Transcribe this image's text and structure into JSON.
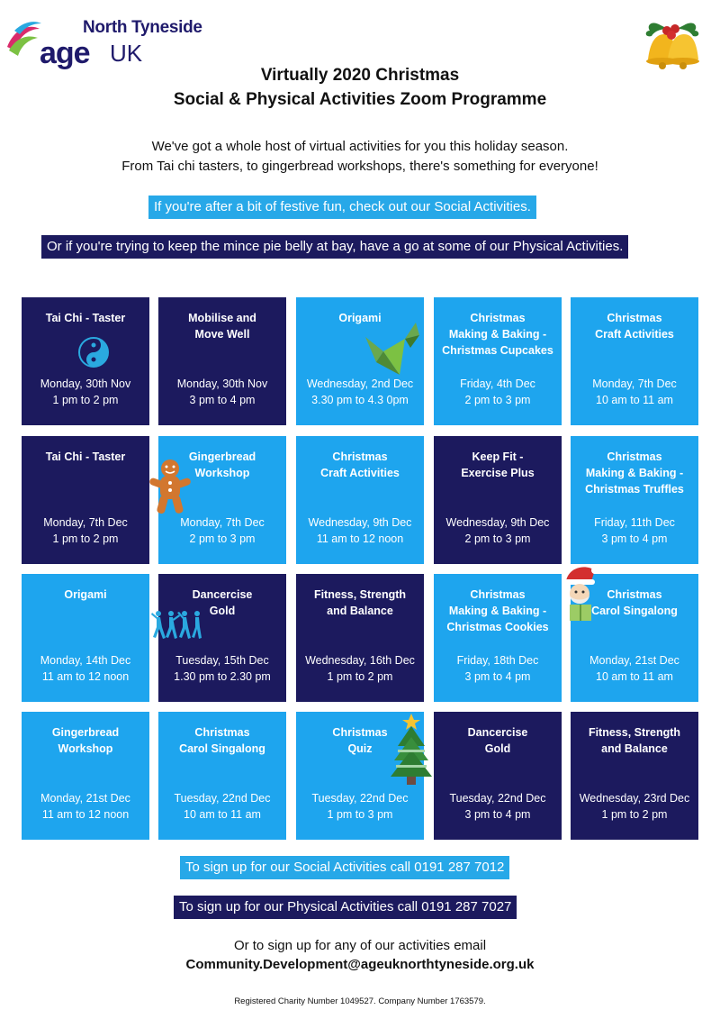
{
  "logo": {
    "line1": "North Tyneside",
    "age": "age",
    "uk": "UK"
  },
  "title": {
    "line1": "Virtually 2020 Christmas",
    "line2": "Social & Physical Activities Zoom Programme"
  },
  "intro": {
    "line1": "We've got a whole host of virtual activities for you this holiday season.",
    "line2": "From Tai chi tasters, to gingerbread workshops, there's something for everyone!"
  },
  "bands": {
    "social": "If you're after a bit of festive fun, check out our Social Activities.",
    "physical": "Or if you're trying to keep the mince pie belly at bay, have a go at some of our Physical Activities."
  },
  "colors": {
    "social": "#1ea5ee",
    "physical": "#1c1a5e",
    "brand": "#1f1a6b"
  },
  "activities": [
    {
      "name": "Tai Chi - Taster",
      "date": "Monday, 30th Nov",
      "time": "1 pm to 2 pm",
      "type": "physical",
      "icon": "yin-yang-icon"
    },
    {
      "name": "Mobilise and\nMove Well",
      "date": "Monday, 30th Nov",
      "time": "3 pm to 4 pm",
      "type": "physical",
      "icon": ""
    },
    {
      "name": "Origami",
      "date": "Wednesday, 2nd Dec",
      "time": "3.30 pm to 4.3 0pm",
      "type": "social",
      "icon": "origami-bird-icon"
    },
    {
      "name": "Christmas\nMaking & Baking -\nChristmas Cupcakes",
      "date": "Friday, 4th Dec",
      "time": "2 pm to 3 pm",
      "type": "social",
      "icon": ""
    },
    {
      "name": "Christmas\nCraft Activities",
      "date": "Monday, 7th Dec",
      "time": "10 am to 11 am",
      "type": "social",
      "icon": ""
    },
    {
      "name": "Tai Chi - Taster",
      "date": "Monday, 7th Dec",
      "time": "1 pm to 2 pm",
      "type": "physical",
      "icon": ""
    },
    {
      "name": "Gingerbread\nWorkshop",
      "date": "Monday, 7th Dec",
      "time": "2 pm to 3 pm",
      "type": "social",
      "icon": "gingerbread-man-icon"
    },
    {
      "name": "Christmas\nCraft Activities",
      "date": "Wednesday, 9th Dec",
      "time": "11 am to 12 noon",
      "type": "social",
      "icon": ""
    },
    {
      "name": "Keep Fit -\nExercise Plus",
      "date": "Wednesday, 9th Dec",
      "time": "2 pm to 3 pm",
      "type": "physical",
      "icon": ""
    },
    {
      "name": "Christmas\nMaking & Baking -\nChristmas Truffles",
      "date": "Friday, 11th Dec",
      "time": "3 pm to 4 pm",
      "type": "social",
      "icon": ""
    },
    {
      "name": "Origami",
      "date": "Monday, 14th Dec",
      "time": "11 am to 12 noon",
      "type": "social",
      "icon": ""
    },
    {
      "name": "Dancercise\nGold",
      "date": "Tuesday, 15th Dec",
      "time": "1.30 pm to 2.30 pm",
      "type": "physical",
      "icon": "dancers-icon"
    },
    {
      "name": "Fitness, Strength\nand Balance",
      "date": "Wednesday, 16th Dec",
      "time": "1 pm to 2 pm",
      "type": "physical",
      "icon": ""
    },
    {
      "name": "Christmas\nMaking & Baking -\nChristmas Cookies",
      "date": "Friday, 18th Dec",
      "time": "3 pm to 4 pm",
      "type": "social",
      "icon": ""
    },
    {
      "name": "Christmas\nCarol Singalong",
      "date": "Monday, 21st Dec",
      "time": "10 am to 11 am",
      "type": "social",
      "icon": "carol-singer-santa-hat-icon"
    },
    {
      "name": "Gingerbread\nWorkshop",
      "date": "Monday, 21st Dec",
      "time": "11 am to 12 noon",
      "type": "social",
      "icon": ""
    },
    {
      "name": "Christmas\nCarol Singalong",
      "date": "Tuesday, 22nd Dec",
      "time": "10 am to 11 am",
      "type": "social",
      "icon": ""
    },
    {
      "name": "Christmas\nQuiz",
      "date": "Tuesday, 22nd Dec",
      "time": "1 pm to 3 pm",
      "type": "social",
      "icon": "christmas-tree-icon"
    },
    {
      "name": "Dancercise\nGold",
      "date": "Tuesday, 22nd Dec",
      "time": "3 pm to 4 pm",
      "type": "physical",
      "icon": ""
    },
    {
      "name": "Fitness, Strength\nand Balance",
      "date": "Wednesday, 23rd Dec",
      "time": "1 pm to 2 pm",
      "type": "physical",
      "icon": ""
    }
  ],
  "signup": {
    "social": "To sign up for our Social Activities call 0191 287 7012",
    "physical": "To sign up for our Physical Activities call 0191 287 7027",
    "email_intro": "Or to sign up for any of our activities email",
    "email": "Community.Development@ageuknorthtyneside.org.uk"
  },
  "footer": {
    "charity": "Registered Charity Number 1049527. Company Number 1763579."
  },
  "decorations": {
    "header": "christmas-bells-icon"
  }
}
